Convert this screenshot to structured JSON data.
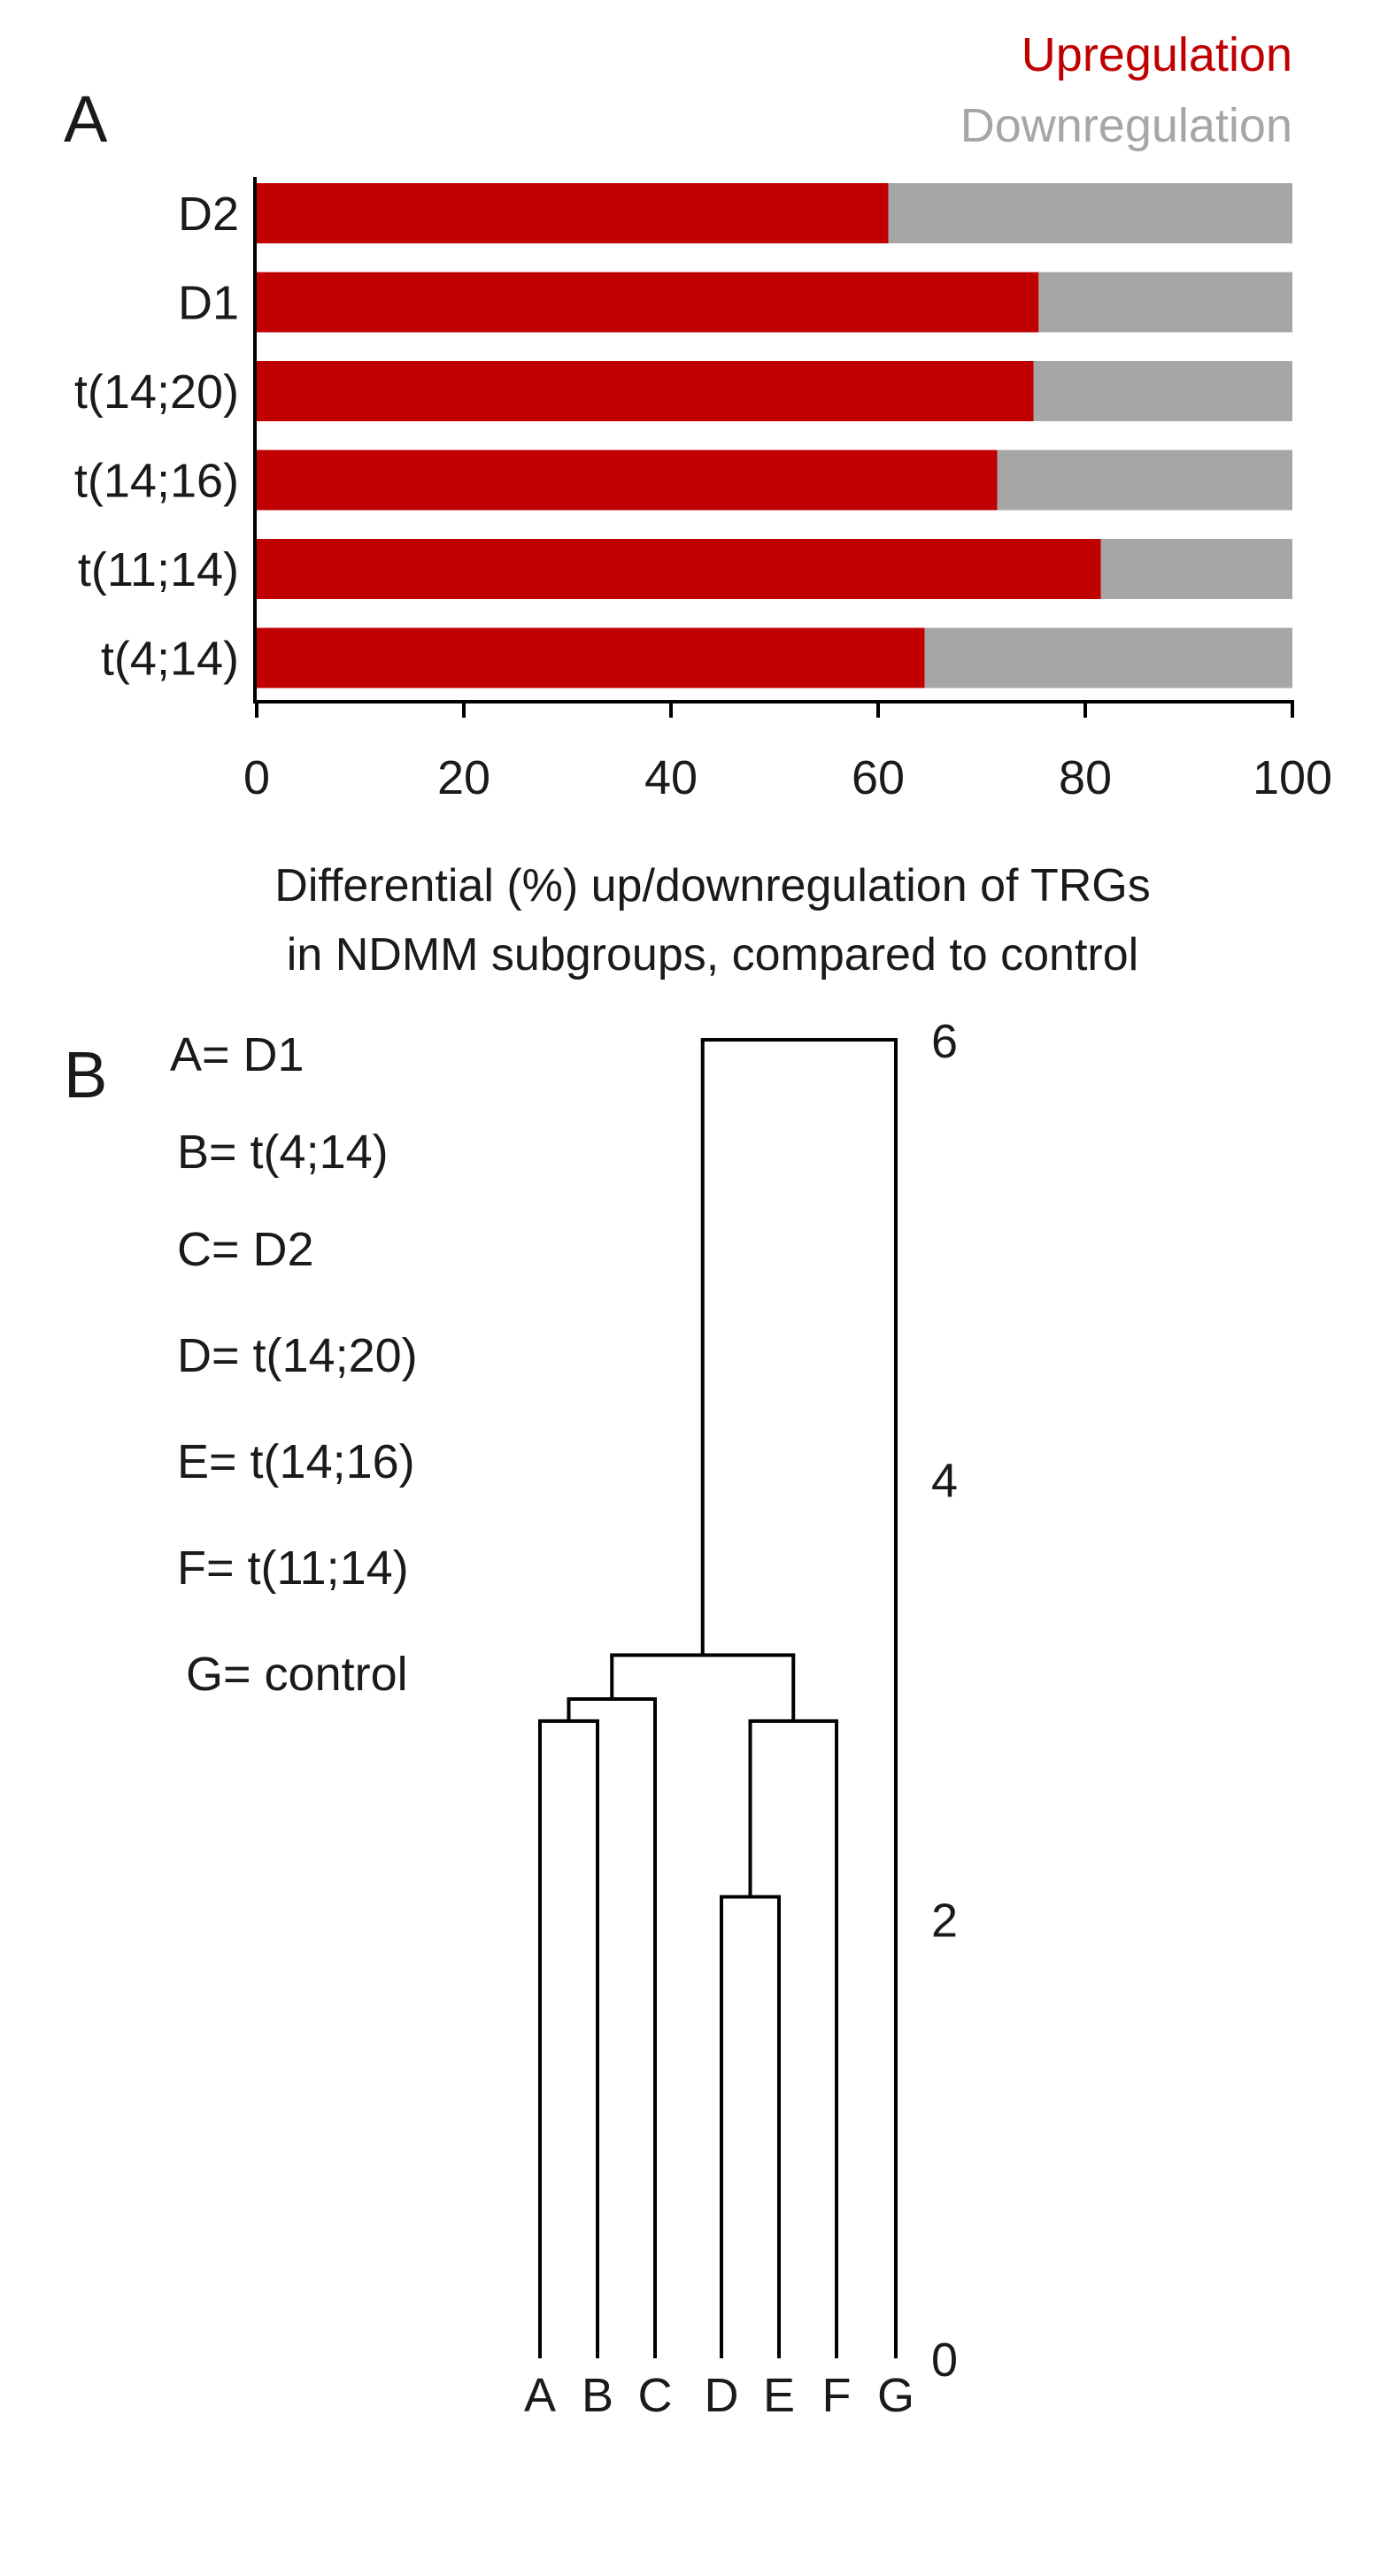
{
  "panels": {
    "A": "A",
    "B": "B"
  },
  "colors": {
    "up": "#c00000",
    "down": "#a6a6a6",
    "axis": "#000000",
    "text": "#1a1a1a"
  },
  "chart_data": [
    {
      "panel": "A",
      "type": "bar",
      "stacked": true,
      "orientation": "horizontal",
      "categories": [
        "D2",
        "D1",
        "t(14;20)",
        "t(14;16)",
        "t(11;14)",
        "t(4;14)"
      ],
      "series": [
        {
          "name": "Upregulation",
          "values": [
            61,
            75.5,
            75,
            71.5,
            81.5,
            64.5
          ]
        },
        {
          "name": "Downregulation",
          "values": [
            39,
            24.5,
            25,
            28.5,
            18.5,
            35.5
          ]
        }
      ],
      "legend": [
        "Upregulation",
        "Downregulation"
      ],
      "legend_position": "top-right",
      "xlim": [
        0,
        100
      ],
      "xticks": [
        "0",
        "20",
        "40",
        "60",
        "80",
        "100"
      ],
      "xlabel_line1": "Differential (%) up/downregulation of TRGs",
      "xlabel_line2": "in NDMM subgroups, compared to control",
      "grid": false
    },
    {
      "panel": "B",
      "type": "dendrogram",
      "leaves": [
        "A",
        "B",
        "C",
        "D",
        "E",
        "F",
        "G"
      ],
      "key": [
        "A= D1",
        "B= t(4;14)",
        "C= D2",
        "D= t(14;20)",
        "E= t(14;16)",
        "F= t(11;14)",
        "G= control"
      ],
      "merges": [
        {
          "left": "D",
          "right": "E",
          "height": 2.1
        },
        {
          "left": "A",
          "right": "B",
          "height": 2.9
        },
        {
          "left": "AB",
          "right": "C",
          "height": 3.0
        },
        {
          "left": "DE",
          "right": "F",
          "height": 2.9
        },
        {
          "left": "ABC",
          "right": "DEF",
          "height": 3.2
        },
        {
          "left": "ABCDEF",
          "right": "G",
          "height": 6.0
        }
      ],
      "ylim": [
        0,
        6
      ],
      "yticks": [
        "0",
        "2",
        "4",
        "6"
      ],
      "grid": false
    }
  ]
}
